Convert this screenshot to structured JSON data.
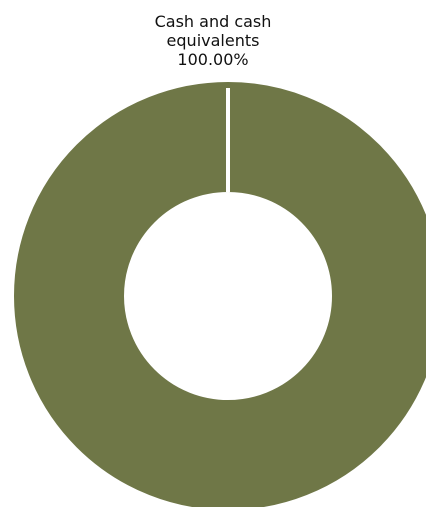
{
  "chart_data": {
    "type": "pie",
    "chart_subtype": "donut",
    "categories": [
      "Cash and cash equivalents"
    ],
    "values": [
      100.0
    ],
    "value_labels": [
      "100.00%"
    ],
    "colors": [
      "#6f7747"
    ],
    "title": "",
    "legend": "none",
    "grid": false,
    "label_lines": [
      "Cash and",
      "cash",
      "equivalents"
    ]
  }
}
